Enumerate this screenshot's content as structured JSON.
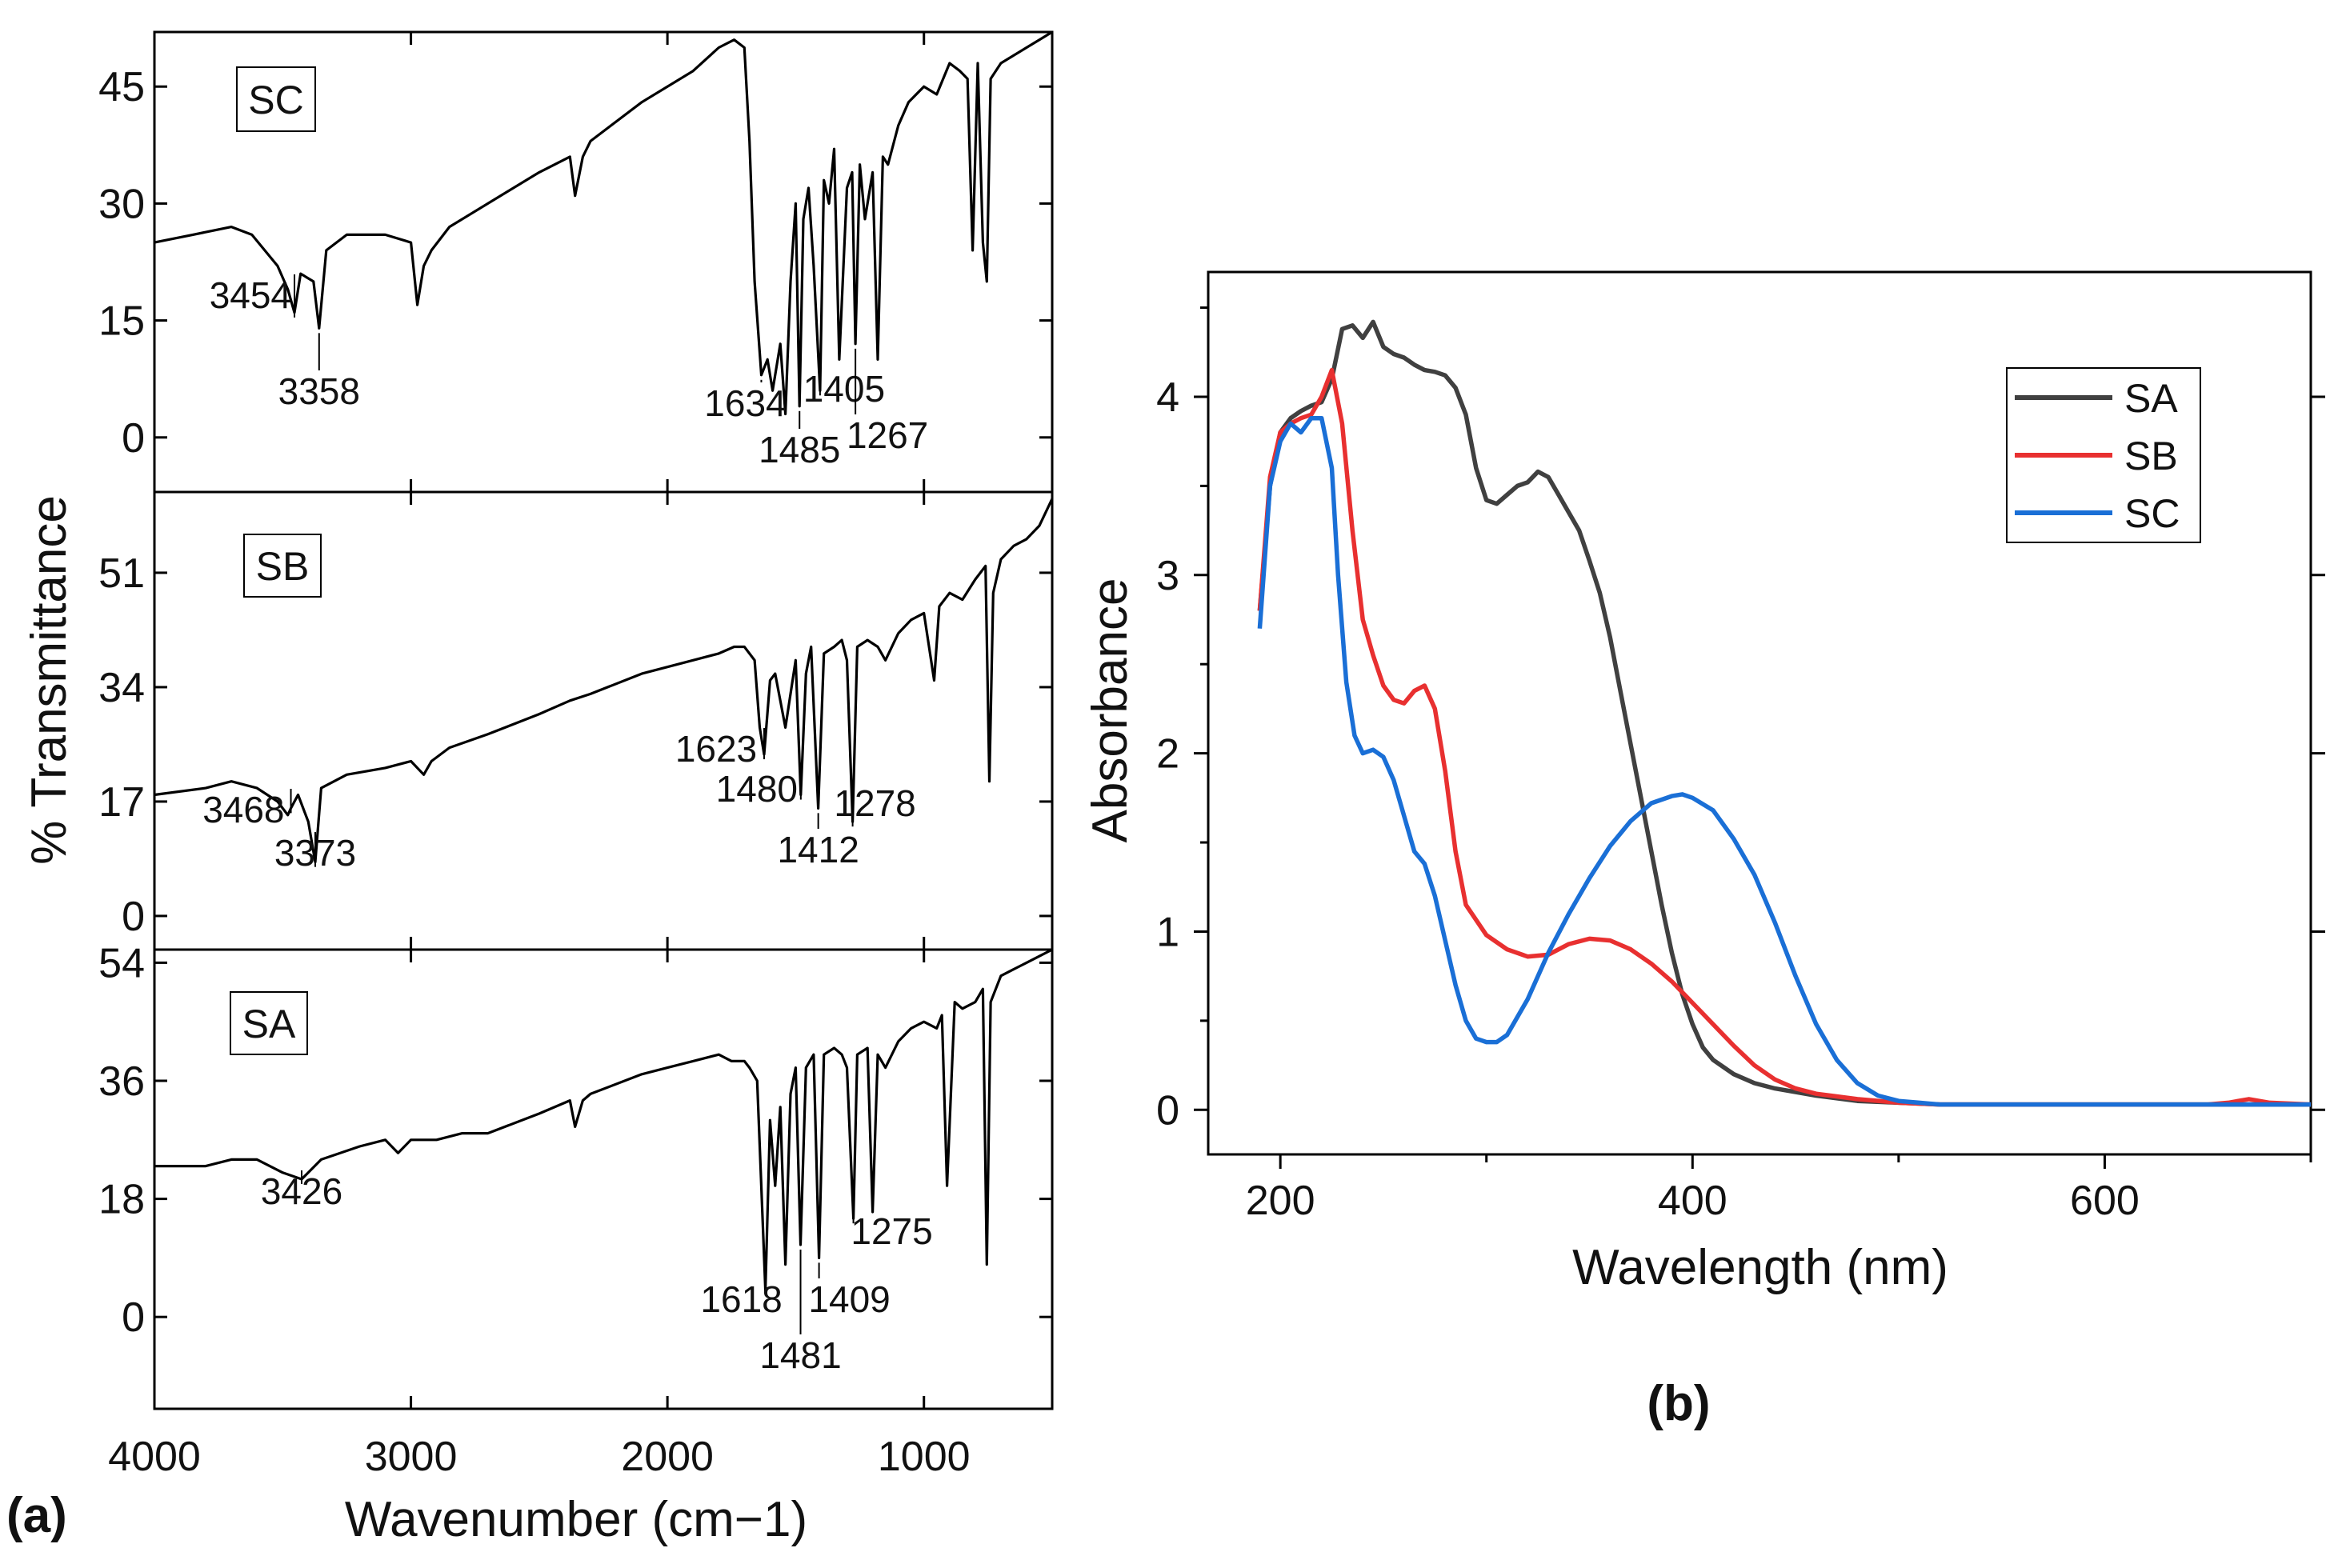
{
  "chart_data": [
    {
      "type": "line",
      "panel_label": "(a)",
      "title": "",
      "xlabel": "Wavenumber (cm−1)",
      "ylabel": "% Transmittance",
      "xlim": [
        4000,
        500
      ],
      "x_ticks": [
        "4000",
        "3000",
        "2000",
        "1000"
      ],
      "x_tick_values": [
        4000,
        3000,
        2000,
        1000
      ],
      "subplots": [
        {
          "name": "SC",
          "ylim": [
            -7,
            52
          ],
          "y_ticks": [
            "0",
            "15",
            "30",
            "45"
          ],
          "y_tick_values": [
            0,
            15,
            30,
            45
          ],
          "series": [
            {
              "name": "SC",
              "x": [
                4000,
                3850,
                3700,
                3620,
                3520,
                3480,
                3454,
                3430,
                3380,
                3358,
                3330,
                3250,
                3100,
                3000,
                2975,
                2950,
                2920,
                2850,
                2700,
                2500,
                2380,
                2360,
                2330,
                2300,
                2100,
                1900,
                1800,
                1740,
                1700,
                1680,
                1660,
                1634,
                1610,
                1590,
                1560,
                1540,
                1520,
                1500,
                1485,
                1470,
                1450,
                1430,
                1405,
                1390,
                1370,
                1350,
                1330,
                1300,
                1280,
                1267,
                1250,
                1230,
                1200,
                1180,
                1160,
                1140,
                1100,
                1060,
                1000,
                950,
                900,
                860,
                830,
                810,
                790,
                770,
                755,
                740,
                700,
                650,
                600,
                550,
                500
              ],
              "y": [
                25,
                26,
                27,
                26,
                22,
                19,
                16,
                21,
                20,
                14,
                24,
                26,
                26,
                25,
                17,
                22,
                24,
                27,
                30,
                34,
                36,
                31,
                36,
                38,
                43,
                47,
                50,
                51,
                50,
                38,
                20,
                8,
                10,
                6,
                12,
                3,
                20,
                30,
                4,
                28,
                32,
                22,
                6,
                33,
                30,
                37,
                10,
                32,
                34,
                12,
                35,
                28,
                34,
                10,
                36,
                35,
                40,
                43,
                45,
                44,
                48,
                47,
                46,
                24,
                48,
                25,
                20,
                46,
                48,
                49,
                50,
                51,
                52
              ]
            }
          ],
          "peak_labels": [
            {
              "text": "3454",
              "x": 3454,
              "y": 16
            },
            {
              "text": "3358",
              "x": 3358,
              "y": 14
            },
            {
              "text": "1634",
              "x": 1634,
              "y": 8
            },
            {
              "text": "1485",
              "x": 1485,
              "y": 4
            },
            {
              "text": "1405",
              "x": 1405,
              "y": 6
            },
            {
              "text": "1267",
              "x": 1267,
              "y": 12
            }
          ]
        },
        {
          "name": "SB",
          "ylim": [
            -5,
            63
          ],
          "y_ticks": [
            "0",
            "17",
            "34",
            "51"
          ],
          "y_tick_values": [
            0,
            17,
            34,
            51
          ],
          "series": [
            {
              "name": "SB",
              "x": [
                4000,
                3800,
                3700,
                3600,
                3520,
                3480,
                3468,
                3440,
                3400,
                3373,
                3350,
                3250,
                3100,
                3000,
                2950,
                2920,
                2850,
                2700,
                2500,
                2380,
                2300,
                2100,
                1900,
                1800,
                1740,
                1700,
                1660,
                1640,
                1623,
                1600,
                1580,
                1540,
                1500,
                1480,
                1460,
                1440,
                1412,
                1390,
                1350,
                1320,
                1300,
                1278,
                1260,
                1220,
                1180,
                1150,
                1100,
                1050,
                1000,
                960,
                940,
                900,
                850,
                800,
                760,
                745,
                730,
                700,
                650,
                600,
                550,
                500
              ],
              "y": [
                18,
                19,
                20,
                19,
                17,
                15,
                16,
                18,
                14,
                8,
                19,
                21,
                22,
                23,
                21,
                23,
                25,
                27,
                30,
                32,
                33,
                36,
                38,
                39,
                40,
                40,
                38,
                28,
                24,
                35,
                36,
                28,
                38,
                18,
                36,
                40,
                16,
                39,
                40,
                41,
                38,
                14,
                40,
                41,
                40,
                38,
                42,
                44,
                45,
                35,
                46,
                48,
                47,
                50,
                52,
                20,
                48,
                53,
                55,
                56,
                58,
                62
              ]
            }
          ],
          "peak_labels": [
            {
              "text": "3468",
              "x": 3468,
              "y": 16
            },
            {
              "text": "3373",
              "x": 3373,
              "y": 8
            },
            {
              "text": "1623",
              "x": 1623,
              "y": 24
            },
            {
              "text": "1480",
              "x": 1480,
              "y": 18
            },
            {
              "text": "1412",
              "x": 1412,
              "y": 16
            },
            {
              "text": "1278",
              "x": 1278,
              "y": 14
            }
          ]
        },
        {
          "name": "SA",
          "ylim": [
            -14,
            56
          ],
          "y_ticks": [
            "0",
            "18",
            "36",
            "54"
          ],
          "y_tick_values": [
            0,
            18,
            36,
            54
          ],
          "series": [
            {
              "name": "SA",
              "x": [
                4000,
                3800,
                3700,
                3600,
                3500,
                3426,
                3350,
                3200,
                3100,
                3050,
                3000,
                2900,
                2800,
                2700,
                2500,
                2380,
                2360,
                2330,
                2300,
                2100,
                2000,
                1900,
                1800,
                1750,
                1700,
                1680,
                1650,
                1618,
                1600,
                1580,
                1560,
                1540,
                1520,
                1500,
                1481,
                1460,
                1430,
                1409,
                1390,
                1350,
                1320,
                1300,
                1275,
                1260,
                1220,
                1200,
                1180,
                1150,
                1100,
                1050,
                1000,
                950,
                930,
                910,
                880,
                850,
                800,
                770,
                755,
                740,
                700,
                650,
                600,
                550,
                500
              ],
              "y": [
                23,
                23,
                24,
                24,
                22,
                21,
                24,
                26,
                27,
                25,
                27,
                27,
                28,
                28,
                31,
                33,
                29,
                33,
                34,
                37,
                38,
                39,
                40,
                39,
                39,
                38,
                36,
                4,
                30,
                20,
                32,
                8,
                34,
                38,
                11,
                38,
                40,
                9,
                40,
                41,
                40,
                38,
                15,
                40,
                41,
                16,
                40,
                38,
                42,
                44,
                45,
                44,
                46,
                20,
                48,
                47,
                48,
                50,
                8,
                48,
                52,
                53,
                54,
                55,
                56
              ]
            }
          ],
          "peak_labels": [
            {
              "text": "3426",
              "x": 3426,
              "y": 21
            },
            {
              "text": "1618",
              "x": 1618,
              "y": 4
            },
            {
              "text": "1481",
              "x": 1481,
              "y": 11
            },
            {
              "text": "1409",
              "x": 1409,
              "y": 9
            },
            {
              "text": "1275",
              "x": 1275,
              "y": 15
            }
          ]
        }
      ]
    },
    {
      "type": "line",
      "panel_label": "(b)",
      "title": "",
      "xlabel": "Wavelength (nm)",
      "ylabel": "Absorbance",
      "xlim": [
        165,
        700
      ],
      "ylim": [
        -0.25,
        4.7
      ],
      "x_ticks": [
        "200",
        "400",
        "600"
      ],
      "x_tick_values": [
        200,
        400,
        600
      ],
      "y_ticks": [
        "0",
        "1",
        "2",
        "3",
        "4"
      ],
      "y_tick_values": [
        0,
        1,
        2,
        3,
        4
      ],
      "legend": "top-right",
      "series": [
        {
          "name": "SA",
          "color": "#404040",
          "x": [
            190,
            195,
            200,
            205,
            210,
            215,
            220,
            225,
            230,
            235,
            240,
            245,
            250,
            255,
            260,
            265,
            270,
            275,
            280,
            285,
            290,
            295,
            300,
            305,
            310,
            315,
            320,
            325,
            330,
            335,
            340,
            345,
            350,
            355,
            360,
            365,
            370,
            375,
            380,
            385,
            390,
            395,
            400,
            405,
            410,
            420,
            430,
            440,
            450,
            460,
            480,
            500,
            520,
            550,
            600,
            650,
            700
          ],
          "y": [
            2.8,
            3.5,
            3.8,
            3.88,
            3.92,
            3.95,
            3.97,
            4.1,
            4.38,
            4.4,
            4.33,
            4.42,
            4.28,
            4.24,
            4.22,
            4.18,
            4.15,
            4.14,
            4.12,
            4.05,
            3.9,
            3.6,
            3.42,
            3.4,
            3.45,
            3.5,
            3.52,
            3.58,
            3.55,
            3.45,
            3.35,
            3.25,
            3.08,
            2.9,
            2.65,
            2.35,
            2.05,
            1.75,
            1.45,
            1.15,
            0.88,
            0.65,
            0.48,
            0.35,
            0.28,
            0.2,
            0.15,
            0.12,
            0.1,
            0.08,
            0.05,
            0.04,
            0.03,
            0.03,
            0.03,
            0.03,
            0.03
          ]
        },
        {
          "name": "SB",
          "color": "#e83030",
          "x": [
            190,
            195,
            200,
            205,
            210,
            215,
            220,
            225,
            230,
            235,
            240,
            245,
            250,
            255,
            260,
            265,
            270,
            275,
            280,
            285,
            290,
            300,
            310,
            320,
            330,
            340,
            350,
            360,
            370,
            380,
            390,
            400,
            410,
            420,
            430,
            440,
            450,
            460,
            480,
            500,
            520,
            550,
            600,
            650,
            660,
            670,
            680,
            700
          ],
          "y": [
            2.8,
            3.55,
            3.8,
            3.85,
            3.88,
            3.9,
            4.0,
            4.15,
            3.85,
            3.25,
            2.75,
            2.55,
            2.38,
            2.3,
            2.28,
            2.35,
            2.38,
            2.25,
            1.9,
            1.45,
            1.15,
            0.98,
            0.9,
            0.86,
            0.87,
            0.93,
            0.96,
            0.95,
            0.9,
            0.82,
            0.72,
            0.6,
            0.48,
            0.36,
            0.25,
            0.17,
            0.12,
            0.09,
            0.06,
            0.04,
            0.03,
            0.03,
            0.03,
            0.03,
            0.04,
            0.06,
            0.04,
            0.03
          ]
        },
        {
          "name": "SC",
          "color": "#1a6fd6",
          "x": [
            190,
            195,
            200,
            205,
            210,
            215,
            220,
            225,
            228,
            232,
            236,
            240,
            245,
            250,
            255,
            260,
            265,
            270,
            275,
            280,
            285,
            290,
            295,
            300,
            305,
            310,
            320,
            330,
            340,
            350,
            360,
            370,
            380,
            390,
            395,
            400,
            410,
            420,
            430,
            440,
            450,
            460,
            470,
            480,
            490,
            500,
            510,
            520,
            550,
            600,
            650,
            700
          ],
          "y": [
            2.7,
            3.5,
            3.75,
            3.85,
            3.8,
            3.88,
            3.88,
            3.6,
            3.0,
            2.4,
            2.1,
            2.0,
            2.02,
            1.98,
            1.85,
            1.65,
            1.45,
            1.38,
            1.2,
            0.95,
            0.7,
            0.5,
            0.4,
            0.38,
            0.38,
            0.42,
            0.62,
            0.88,
            1.1,
            1.3,
            1.48,
            1.62,
            1.72,
            1.76,
            1.77,
            1.75,
            1.68,
            1.52,
            1.32,
            1.05,
            0.75,
            0.48,
            0.28,
            0.15,
            0.08,
            0.05,
            0.04,
            0.03,
            0.03,
            0.03,
            0.03,
            0.03
          ]
        }
      ]
    }
  ],
  "colors": {
    "ir_line": "#000000",
    "SA": "#404040",
    "SB": "#e83030",
    "SC": "#1a6fd6"
  }
}
